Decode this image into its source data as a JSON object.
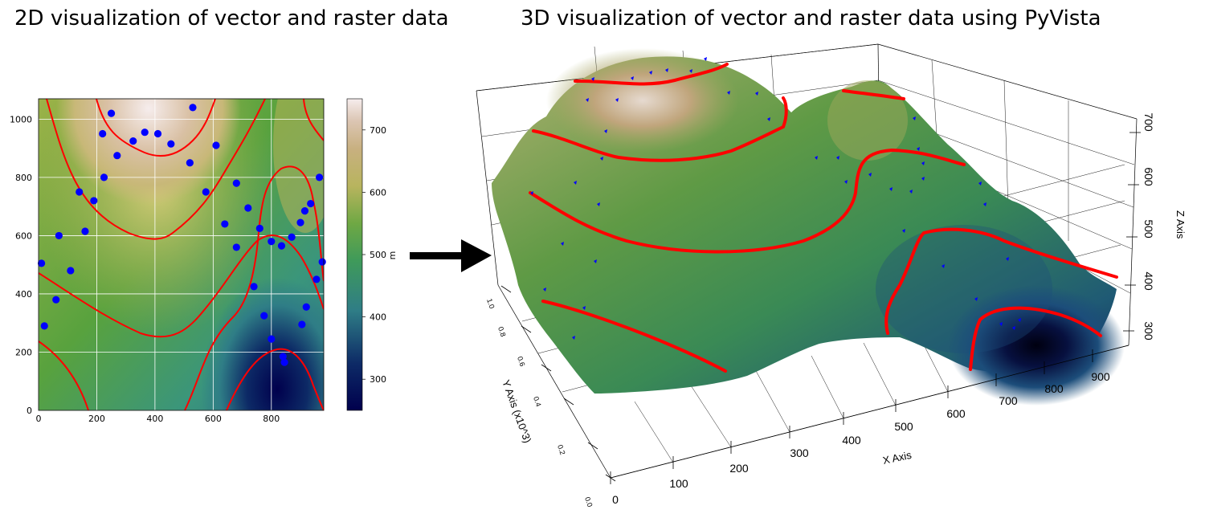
{
  "titles": {
    "left": "2D visualization of vector and raster data",
    "right": "3D visualization of vector and raster data using PyVista"
  },
  "colors": {
    "contour": "#ff0000",
    "points": "#0000ff",
    "grid": "#ffffff",
    "arrow": "#000000",
    "colormap": [
      "#00004d",
      "#0d2a66",
      "#2f7d86",
      "#3f9a5a",
      "#5aa33f",
      "#a8b050",
      "#c8b878",
      "#d9c0a4",
      "#f6eded"
    ]
  },
  "chart_data": [
    {
      "type": "heatmap",
      "panel": "2D",
      "xlim": [
        0,
        980
      ],
      "ylim": [
        0,
        1070
      ],
      "xticks": [
        "0",
        "200",
        "400",
        "600",
        "800"
      ],
      "yticks": [
        "0",
        "200",
        "400",
        "600",
        "800",
        "1000"
      ],
      "grid": true,
      "colorbar": {
        "label": "m",
        "range": [
          250,
          750
        ],
        "ticks": [
          "300",
          "400",
          "500",
          "600",
          "700"
        ]
      },
      "contours": "red",
      "points": [
        {
          "x": 10,
          "y": 505
        },
        {
          "x": 20,
          "y": 290
        },
        {
          "x": 60,
          "y": 380
        },
        {
          "x": 70,
          "y": 600
        },
        {
          "x": 110,
          "y": 480
        },
        {
          "x": 140,
          "y": 750
        },
        {
          "x": 160,
          "y": 615
        },
        {
          "x": 190,
          "y": 720
        },
        {
          "x": 220,
          "y": 950
        },
        {
          "x": 225,
          "y": 800
        },
        {
          "x": 250,
          "y": 1020
        },
        {
          "x": 270,
          "y": 875
        },
        {
          "x": 325,
          "y": 925
        },
        {
          "x": 365,
          "y": 955
        },
        {
          "x": 410,
          "y": 950
        },
        {
          "x": 455,
          "y": 915
        },
        {
          "x": 520,
          "y": 850
        },
        {
          "x": 530,
          "y": 1040
        },
        {
          "x": 575,
          "y": 750
        },
        {
          "x": 610,
          "y": 910
        },
        {
          "x": 640,
          "y": 640
        },
        {
          "x": 680,
          "y": 560
        },
        {
          "x": 680,
          "y": 780
        },
        {
          "x": 720,
          "y": 695
        },
        {
          "x": 740,
          "y": 425
        },
        {
          "x": 760,
          "y": 625
        },
        {
          "x": 775,
          "y": 325
        },
        {
          "x": 800,
          "y": 580
        },
        {
          "x": 800,
          "y": 245
        },
        {
          "x": 835,
          "y": 565
        },
        {
          "x": 840,
          "y": 185
        },
        {
          "x": 845,
          "y": 165
        },
        {
          "x": 870,
          "y": 595
        },
        {
          "x": 900,
          "y": 645
        },
        {
          "x": 905,
          "y": 295
        },
        {
          "x": 915,
          "y": 685
        },
        {
          "x": 920,
          "y": 355
        },
        {
          "x": 935,
          "y": 710
        },
        {
          "x": 955,
          "y": 450
        },
        {
          "x": 965,
          "y": 800
        },
        {
          "x": 975,
          "y": 510
        }
      ]
    },
    {
      "type": "surface3d",
      "panel": "3D",
      "xlabel": "X Axis",
      "ylabel": "Y Axis (x10^3)",
      "zlabel": "Z Axis",
      "xticks": [
        "0",
        "100",
        "200",
        "300",
        "400",
        "500",
        "600",
        "700",
        "800",
        "900"
      ],
      "yticks": [
        "0.0",
        "0.2",
        "0.4",
        "0.6",
        "0.8",
        "1.0"
      ],
      "zticks": [
        "300",
        "400",
        "500",
        "600",
        "700"
      ]
    }
  ]
}
